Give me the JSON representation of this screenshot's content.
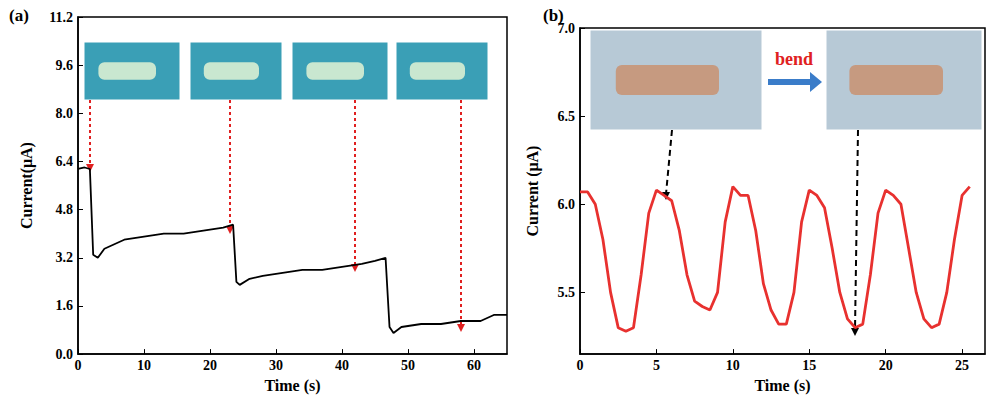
{
  "chart_data": [
    {
      "type": "line",
      "title": "(a)",
      "x_label": "Time (s)",
      "y_label": "Current(μA)",
      "x": [
        0,
        1,
        1.8,
        2.3,
        3,
        4,
        5,
        7,
        10,
        13,
        16,
        19,
        22,
        23.5,
        24,
        24.5,
        26,
        28,
        31,
        34,
        37,
        40,
        43,
        45,
        46.6,
        47.2,
        47.8,
        49,
        52,
        55,
        58,
        61,
        63,
        65
      ],
      "values": [
        6.15,
        6.2,
        6.15,
        3.3,
        3.2,
        3.5,
        3.6,
        3.8,
        3.9,
        4.0,
        4.0,
        4.1,
        4.2,
        4.3,
        2.4,
        2.3,
        2.5,
        2.6,
        2.7,
        2.8,
        2.8,
        2.9,
        3.0,
        3.1,
        3.2,
        0.9,
        0.7,
        0.9,
        1.0,
        1.0,
        1.1,
        1.1,
        1.3,
        1.3
      ],
      "color": "#000000",
      "xlim": [
        0,
        65
      ],
      "xticks": [
        0,
        10,
        20,
        30,
        40,
        50,
        60
      ],
      "ylim": [
        0,
        11.2
      ],
      "yticks": [
        {
          "value": 0,
          "label": "0.0"
        },
        1.6,
        3.2,
        4.8,
        6.4,
        {
          "value": 8,
          "label": "8.0"
        },
        9.6,
        11.2
      ],
      "grid": false
    },
    {
      "type": "line",
      "title": "(b)",
      "x_label": "Time (s)",
      "y_label": "Current (μA)",
      "annotations": [
        "bend"
      ],
      "x": [
        0,
        0.5,
        1,
        1.5,
        2,
        2.5,
        3,
        3.5,
        4,
        4.5,
        5,
        5.5,
        6,
        6.5,
        7,
        7.5,
        8,
        8.5,
        9,
        9.5,
        10,
        10.5,
        11,
        11.5,
        12,
        12.5,
        13,
        13.5,
        14,
        14.5,
        15,
        15.5,
        16,
        16.5,
        17,
        17.5,
        18,
        18.5,
        19,
        19.5,
        20,
        20.5,
        21,
        21.5,
        22,
        22.5,
        23,
        23.5,
        24,
        24.5,
        25,
        25.5
      ],
      "values": [
        6.07,
        6.07,
        6.0,
        5.8,
        5.5,
        5.3,
        5.28,
        5.3,
        5.6,
        5.95,
        6.08,
        6.05,
        6.02,
        5.85,
        5.6,
        5.45,
        5.42,
        5.4,
        5.5,
        5.9,
        6.1,
        6.05,
        6.05,
        5.85,
        5.55,
        5.4,
        5.32,
        5.32,
        5.5,
        5.9,
        6.08,
        6.05,
        5.98,
        5.75,
        5.5,
        5.35,
        5.3,
        5.32,
        5.6,
        5.95,
        6.08,
        6.05,
        6.0,
        5.75,
        5.5,
        5.35,
        5.3,
        5.32,
        5.5,
        5.8,
        6.05,
        6.1
      ],
      "color": "#e8312f",
      "xlim": [
        0,
        26.5
      ],
      "xticks": [
        0,
        5,
        10,
        15,
        20,
        25
      ],
      "ylim": [
        5.15,
        7.0
      ],
      "yticks": [
        5.5,
        {
          "value": 6,
          "label": "6.0"
        },
        6.5,
        {
          "value": 7,
          "label": "7.0"
        }
      ],
      "grid": false
    }
  ]
}
